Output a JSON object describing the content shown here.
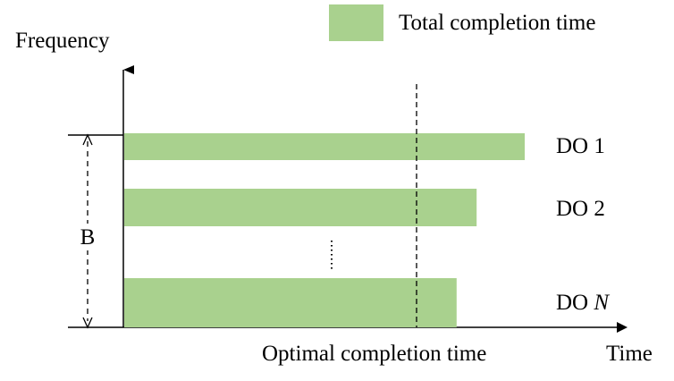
{
  "legend": {
    "label": "Total completion time",
    "color": "#a9d18e"
  },
  "axes": {
    "y_label": "Frequency",
    "x_label": "Time"
  },
  "bandwidth_label": "B",
  "optimal_label": "Optimal completion time",
  "bars": [
    {
      "label": "DO 1",
      "completion_time": 1.0,
      "is_symbolic": false
    },
    {
      "label": "DO 2",
      "completion_time": 0.88,
      "is_symbolic": false
    },
    {
      "label_prefix": "DO ",
      "label_symbol": "N",
      "completion_time": 0.83,
      "is_symbolic": true
    }
  ],
  "optimal_completion_time": 0.73,
  "colors": {
    "bar": "#a9d18e",
    "axis": "#000000"
  }
}
